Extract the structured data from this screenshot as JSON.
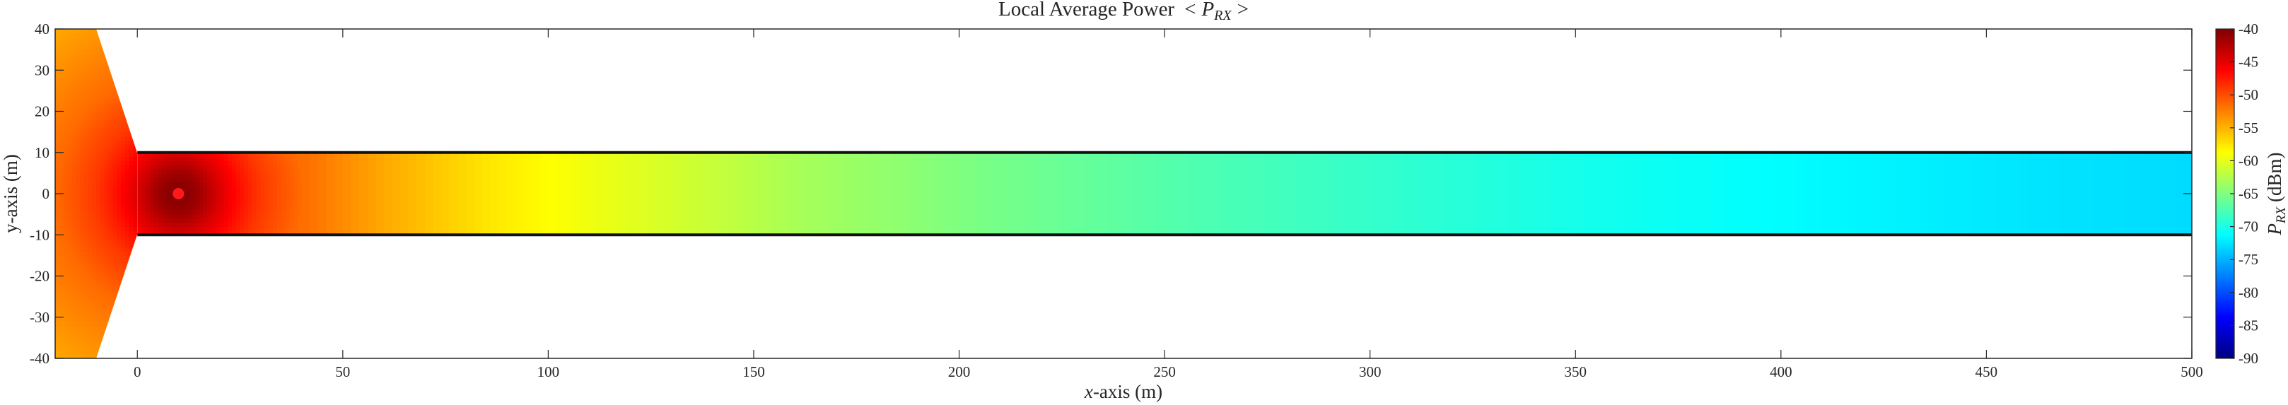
{
  "chart_data": {
    "type": "heatmap",
    "title": "Local Average Power",
    "title_symbol": "< P_RX >",
    "title_symbol_parts": {
      "open": "<",
      "main": "P",
      "sub": "RX",
      "close": ">"
    },
    "xlabel": {
      "var": "x",
      "rest": "-axis (m)"
    },
    "ylabel": "y-axis (m)",
    "xlim": [
      -20,
      500
    ],
    "ylim": [
      -40,
      40
    ],
    "xticks": [
      0,
      50,
      100,
      150,
      200,
      250,
      300,
      350,
      400,
      450,
      500
    ],
    "yticks": [
      -40,
      -30,
      -20,
      -10,
      0,
      10,
      20,
      30,
      40
    ],
    "colorbar": {
      "label": {
        "main": "P",
        "sub": "RX",
        "rest": " (dBm)"
      },
      "clim": [
        -90,
        -40
      ],
      "ticks": [
        -90,
        -85,
        -80,
        -75,
        -70,
        -65,
        -60,
        -55,
        -50,
        -45,
        -40
      ],
      "colormap": "jet"
    },
    "corridor": {
      "x": [
        0,
        500
      ],
      "y": [
        -10,
        10
      ]
    },
    "transmitter": {
      "x": 10,
      "y": 0
    },
    "power_profile": {
      "distance_m": [
        0,
        2,
        5,
        10,
        15,
        20,
        30,
        50,
        75,
        100,
        130,
        150,
        200,
        250,
        300,
        350,
        400,
        450,
        490
      ],
      "power_dBm": [
        -40,
        -40.5,
        -41.5,
        -44.5,
        -47,
        -49,
        -51.5,
        -54.5,
        -57.5,
        -59.5,
        -61.5,
        -63,
        -65.5,
        -67.5,
        -69,
        -70.5,
        -71.5,
        -72.5,
        -73
      ]
    },
    "grid": false,
    "legend": "none"
  }
}
